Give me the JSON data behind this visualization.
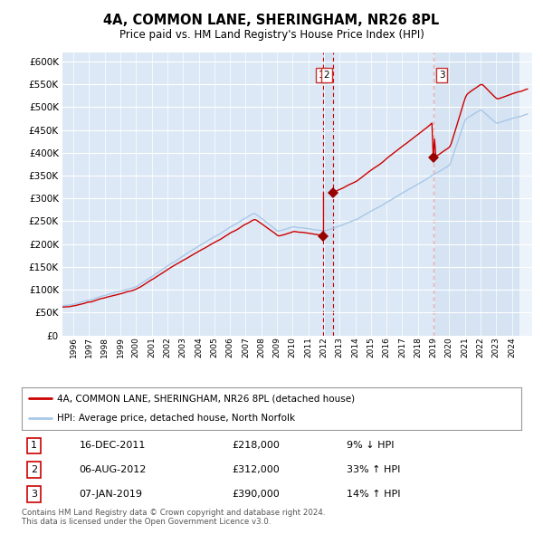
{
  "title": "4A, COMMON LANE, SHERINGHAM, NR26 8PL",
  "subtitle": "Price paid vs. HM Land Registry's House Price Index (HPI)",
  "legend_line1": "4A, COMMON LANE, SHERINGHAM, NR26 8PL (detached house)",
  "legend_line2": "HPI: Average price, detached house, North Norfolk",
  "transactions": [
    {
      "num": 1,
      "date": "16-DEC-2011",
      "price": "£218,000",
      "rel": "9% ↓ HPI",
      "year": 2011.96,
      "price_val": 218000
    },
    {
      "num": 2,
      "date": "06-AUG-2012",
      "price": "£312,000",
      "rel": "33% ↑ HPI",
      "year": 2012.59,
      "price_val": 312000
    },
    {
      "num": 3,
      "date": "07-JAN-2019",
      "price": "£390,000",
      "rel": "14% ↑ HPI",
      "year": 2019.02,
      "price_val": 390000
    }
  ],
  "footer1": "Contains HM Land Registry data © Crown copyright and database right 2024.",
  "footer2": "This data is licensed under the Open Government Licence v3.0.",
  "hpi_color": "#a8c8e8",
  "price_color": "#cc0000",
  "vline_color": "#cc0000",
  "bg_color": "#dce8f5",
  "shade_color": "#c8ddf0",
  "ylim": [
    0,
    620000
  ],
  "yticks": [
    0,
    50000,
    100000,
    150000,
    200000,
    250000,
    300000,
    350000,
    400000,
    450000,
    500000,
    550000,
    600000
  ],
  "xlim_start": 1995.3,
  "xlim_end": 2025.3
}
